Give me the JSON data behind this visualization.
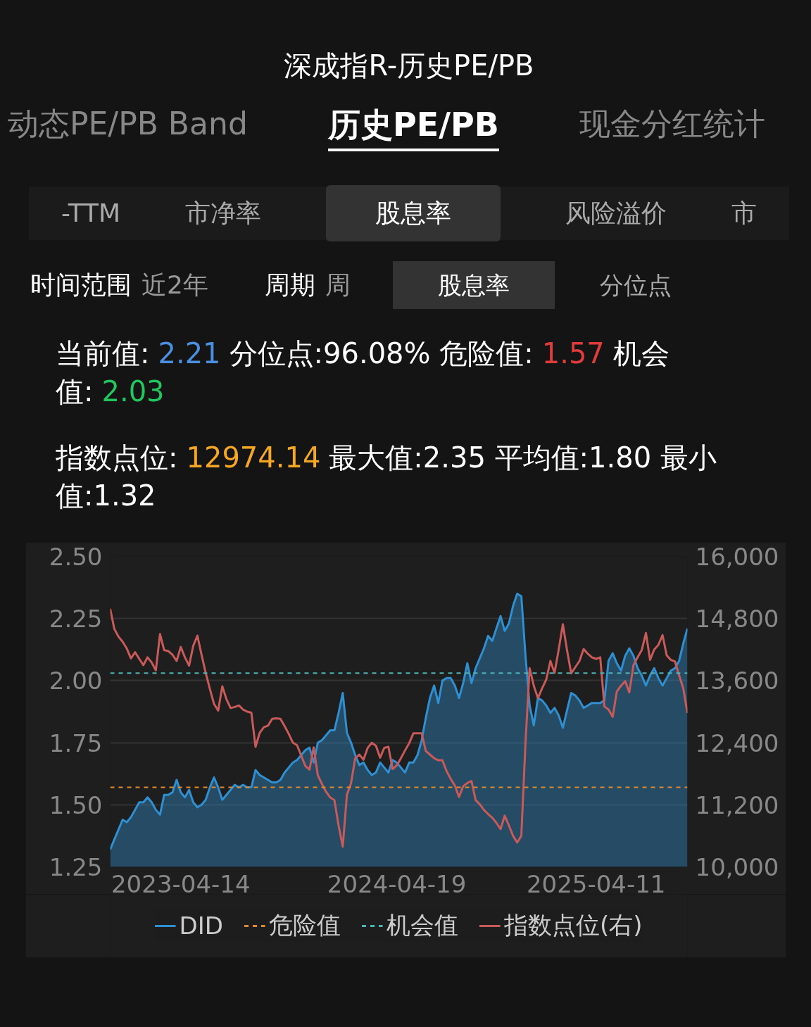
{
  "chart_data": {
    "type": "area",
    "title": "深成指R-历史PE/PB",
    "annotations": [
      "动态PE/PB Band",
      "历史PE/PB",
      "现金分红统计",
      "-TTM",
      "市净率",
      "股息率",
      "风险溢价",
      "市",
      "时间范围",
      "近2年",
      "周期",
      "周",
      "股息率",
      "分位点",
      "当前值:",
      "2.21",
      "分位点:96.08% 危险值:",
      "1.57",
      "机会值:",
      "2.03",
      "指数点位:",
      "12974.14",
      "最大值:2.35 平均值:1.80 最小值:1.32"
    ],
    "categories": [
      null,
      null,
      null,
      null,
      null,
      null,
      null,
      null,
      null,
      null,
      null,
      null,
      null,
      null,
      null,
      null,
      null,
      "2023-04-14",
      null,
      null,
      null,
      null,
      null,
      null,
      null,
      null,
      null,
      null,
      null,
      null,
      null,
      null,
      null,
      null,
      null,
      null,
      null,
      null,
      null,
      null,
      null,
      null,
      null,
      null,
      null,
      null,
      null,
      null,
      null,
      null,
      null,
      null,
      null,
      null,
      null,
      null,
      null,
      null,
      null,
      null,
      null,
      null,
      null,
      null,
      null,
      null,
      null,
      null,
      null,
      "2024-04-19",
      null,
      null,
      null,
      null,
      null,
      null,
      null,
      null,
      null,
      null,
      null,
      null,
      null,
      null,
      null,
      null,
      null,
      null,
      null,
      null,
      null,
      null,
      null,
      null,
      null,
      null,
      null,
      null,
      null,
      null,
      null,
      null,
      null,
      null,
      null,
      null,
      null,
      null,
      null,
      null,
      null,
      null,
      null,
      null,
      null,
      null,
      null,
      "2025-04-11",
      null,
      null,
      null,
      null,
      null,
      null,
      null,
      null,
      null,
      null,
      null,
      null,
      null,
      null,
      null,
      null,
      null,
      null,
      null,
      null,
      null,
      null
    ],
    "series": [
      {
        "name": "DID",
        "color": "#2f8fd0",
        "values": [
          1.32,
          1.36,
          1.4,
          1.44,
          1.43,
          1.45,
          1.48,
          1.51,
          1.51,
          1.53,
          1.51,
          1.48,
          1.46,
          1.54,
          1.54,
          1.55,
          1.6,
          1.55,
          1.53,
          1.56,
          1.51,
          1.49,
          1.5,
          1.52,
          1.57,
          1.61,
          1.57,
          1.52,
          1.54,
          1.56,
          1.58,
          1.57,
          1.58,
          1.57,
          1.57,
          1.64,
          1.62,
          1.61,
          1.6,
          1.59,
          1.59,
          1.6,
          1.63,
          1.65,
          1.67,
          1.68,
          1.7,
          1.72,
          1.73,
          1.67,
          1.75,
          1.76,
          1.78,
          1.8,
          1.8,
          1.87,
          1.95,
          1.79,
          1.75,
          1.7,
          1.66,
          1.67,
          1.64,
          1.62,
          1.63,
          1.67,
          1.65,
          1.63,
          1.68,
          1.67,
          1.65,
          1.63,
          1.67,
          1.67,
          1.7,
          1.76,
          1.85,
          1.93,
          1.98,
          1.91,
          2.0,
          2.01,
          2.01,
          1.98,
          1.93,
          1.99,
          2.07,
          1.99,
          2.05,
          2.09,
          2.13,
          2.18,
          2.16,
          2.21,
          2.26,
          2.2,
          2.23,
          2.3,
          2.35,
          2.34,
          2.1,
          1.9,
          1.82,
          1.93,
          1.92,
          1.9,
          1.87,
          1.89,
          1.86,
          1.81,
          1.88,
          1.95,
          1.94,
          1.92,
          1.89,
          1.9,
          1.91,
          1.91,
          1.91,
          1.92,
          2.08,
          2.11,
          2.07,
          2.04,
          2.1,
          2.13,
          2.1,
          2.05,
          2.02,
          1.98,
          2.02,
          2.05,
          2.01,
          1.98,
          2.01,
          2.04,
          2.05,
          2.08,
          2.15,
          2.21
        ]
      },
      {
        "name": "指数点位(右)",
        "color": "#c85a5a",
        "type": "line",
        "axis": "y2",
        "values": [
          14990,
          14600,
          14450,
          14350,
          14220,
          14030,
          14150,
          14020,
          13900,
          14050,
          13950,
          13800,
          14500,
          14190,
          14170,
          14100,
          13980,
          14250,
          14050,
          13890,
          14270,
          14470,
          14100,
          13750,
          13440,
          13150,
          13020,
          13490,
          13240,
          13070,
          13090,
          13120,
          13040,
          13000,
          12980,
          12320,
          12590,
          12700,
          12730,
          12860,
          12870,
          12860,
          12720,
          12570,
          12400,
          12350,
          12150,
          11950,
          11880,
          12310,
          11770,
          11600,
          11450,
          11340,
          11290,
          10800,
          10390,
          11390,
          11620,
          12100,
          12170,
          12070,
          12300,
          12400,
          12340,
          12110,
          12300,
          12320,
          11890,
          11960,
          12100,
          12250,
          12390,
          12580,
          12580,
          12580,
          12240,
          12170,
          12100,
          12060,
          12060,
          11850,
          11700,
          11570,
          11350,
          11560,
          11620,
          11660,
          11290,
          11210,
          11100,
          11020,
          10950,
          10850,
          10730,
          10990,
          10800,
          10600,
          10470,
          10600,
          12400,
          13840,
          13500,
          13260,
          13450,
          13620,
          13980,
          13750,
          14200,
          14690,
          14190,
          13740,
          13860,
          13980,
          14210,
          14120,
          14050,
          14020,
          14050,
          13100,
          13040,
          12900,
          13390,
          13500,
          13590,
          13370,
          13900,
          14050,
          14190,
          14520,
          14000,
          14200,
          14290,
          14480,
          14090,
          14000,
          13970,
          13700,
          13450,
          12970
        ]
      }
    ],
    "ref_lines": [
      {
        "axis": "y",
        "value": 1.57,
        "label": "危险值",
        "color": "#e08a2e",
        "line_style": "dashed"
      },
      {
        "axis": "y",
        "value": 2.03,
        "label": "机会值",
        "color": "#4fb3b3",
        "line_style": "dashed"
      }
    ],
    "ylim": [
      1.25,
      2.5
    ],
    "yticks": [
      {
        "value": 1.25,
        "label": "1.25"
      },
      {
        "value": 1.5,
        "label": "1.50"
      },
      {
        "value": 1.75,
        "label": "1.75"
      },
      {
        "value": 2.0,
        "label": "2.00"
      },
      {
        "value": 2.25,
        "label": "2.25"
      },
      {
        "value": 2.5,
        "label": "2.50"
      }
    ],
    "y2lim": [
      10000,
      16000
    ],
    "y2ticks": [
      {
        "value": 10000,
        "label": "10,000"
      },
      {
        "value": 11200,
        "label": "11,200"
      },
      {
        "value": 12400,
        "label": "12,400"
      },
      {
        "value": 13600,
        "label": "13,600"
      },
      {
        "value": 14800,
        "label": "14,800"
      },
      {
        "value": 16000,
        "label": "16,000"
      }
    ],
    "grid": "y",
    "legend": "bottom",
    "marker": "none"
  }
}
